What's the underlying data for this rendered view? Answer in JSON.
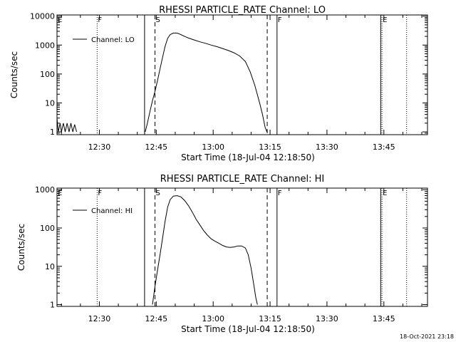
{
  "page": {
    "background": "#ffffff",
    "foreground": "#000000",
    "footer": "18-Oct-2021 23:18"
  },
  "chart_data": [
    {
      "type": "line",
      "title": "RHESSI PARTICLE_RATE Channel: LO",
      "xlabel": "Start Time (18-Jul-04 12:18:50)",
      "ylabel": "Counts/sec",
      "xscale": "time-minutes",
      "xlim": [
        "12:18:50",
        "13:56:30"
      ],
      "xticks": [
        "12:30",
        "12:45",
        "13:00",
        "13:15",
        "13:30",
        "13:45"
      ],
      "yscale": "log",
      "ylim": [
        0.8,
        11000
      ],
      "yticks": [
        "1",
        "10",
        "100",
        "1000",
        "10000"
      ],
      "grid": false,
      "legend": {
        "position": "top-left",
        "entries": [
          "Channel: LO"
        ]
      },
      "markers": [
        {
          "label": "E",
          "time": "12:18:50",
          "style": "dotted"
        },
        {
          "label": "F",
          "time": "12:29:25",
          "style": "dotted"
        },
        {
          "label": "",
          "time": "12:41:55",
          "style": "solid"
        },
        {
          "label": "S",
          "time": "12:44:40",
          "style": "dashed"
        },
        {
          "label": "",
          "time": "13:14:15",
          "style": "dashed"
        },
        {
          "label": "F",
          "time": "13:16:50",
          "style": "solid"
        },
        {
          "label": "E",
          "time": "13:44:30",
          "style": "dotted"
        },
        {
          "label": "",
          "time": "13:44:10",
          "style": "solid"
        },
        {
          "label": "",
          "time": "13:51:00",
          "style": "dotted"
        }
      ],
      "series": [
        {
          "name": "Channel: LO",
          "segments": [
            [
              [
                "12:18:50",
                3
              ],
              [
                "12:19:10",
                1
              ],
              [
                "12:19:40",
                2
              ],
              [
                "12:20:00",
                1
              ],
              [
                "12:20:30",
                2
              ],
              [
                "12:21:00",
                1
              ],
              [
                "12:21:30",
                2
              ],
              [
                "12:22:00",
                1
              ],
              [
                "12:22:30",
                2
              ],
              [
                "12:23:00",
                1
              ],
              [
                "12:23:30",
                1.8
              ],
              [
                "12:24:00",
                1
              ]
            ],
            [
              [
                "12:42:05",
                1
              ],
              [
                "12:42:40",
                2
              ],
              [
                "12:43:20",
                5
              ],
              [
                "12:44:00",
                12
              ],
              [
                "12:44:40",
                25
              ],
              [
                "12:45:20",
                60
              ],
              [
                "12:46:00",
                150
              ],
              [
                "12:46:40",
                380
              ],
              [
                "12:47:20",
                900
              ],
              [
                "12:48:00",
                1700
              ],
              [
                "12:48:40",
                2300
              ],
              [
                "12:49:30",
                2600
              ],
              [
                "12:50:30",
                2600
              ],
              [
                "12:51:30",
                2300
              ],
              [
                "12:52:30",
                2000
              ],
              [
                "12:53:30",
                1750
              ],
              [
                "12:55:00",
                1500
              ],
              [
                "12:56:30",
                1300
              ],
              [
                "12:58:00",
                1150
              ],
              [
                "12:59:30",
                1000
              ],
              [
                "13:01:00",
                880
              ],
              [
                "13:02:30",
                760
              ],
              [
                "13:04:00",
                650
              ],
              [
                "13:05:30",
                540
              ],
              [
                "13:07:00",
                420
              ],
              [
                "13:08:30",
                270
              ],
              [
                "13:09:45",
                120
              ],
              [
                "13:11:00",
                40
              ],
              [
                "13:12:15",
                10
              ],
              [
                "13:13:00",
                4
              ],
              [
                "13:13:40",
                1.5
              ],
              [
                "13:14:10",
                1
              ]
            ]
          ]
        }
      ]
    },
    {
      "type": "line",
      "title": "RHESSI PARTICLE_RATE Channel: HI",
      "xlabel": "Start Time (18-Jul-04 12:18:50)",
      "ylabel": "Counts/sec",
      "xscale": "time-minutes",
      "xlim": [
        "12:18:50",
        "13:56:30"
      ],
      "xticks": [
        "12:30",
        "12:45",
        "13:00",
        "13:15",
        "13:30",
        "13:45"
      ],
      "yscale": "log",
      "ylim": [
        0.9,
        1100
      ],
      "yticks": [
        "1",
        "10",
        "100",
        "1000"
      ],
      "grid": false,
      "legend": {
        "position": "top-left",
        "entries": [
          "Channel: HI"
        ]
      },
      "markers": [
        {
          "label": "E",
          "time": "12:18:50",
          "style": "dotted"
        },
        {
          "label": "F",
          "time": "12:29:25",
          "style": "dotted"
        },
        {
          "label": "",
          "time": "12:41:55",
          "style": "solid"
        },
        {
          "label": "S",
          "time": "12:44:40",
          "style": "dashed"
        },
        {
          "label": "",
          "time": "13:14:15",
          "style": "dashed"
        },
        {
          "label": "F",
          "time": "13:16:50",
          "style": "solid"
        },
        {
          "label": "E",
          "time": "13:44:30",
          "style": "dotted"
        },
        {
          "label": "",
          "time": "13:44:10",
          "style": "solid"
        },
        {
          "label": "",
          "time": "13:51:00",
          "style": "dotted"
        }
      ],
      "series": [
        {
          "name": "Channel: HI",
          "segments": [
            [
              [
                "12:44:00",
                1
              ],
              [
                "12:44:40",
                3
              ],
              [
                "12:45:20",
                8
              ],
              [
                "12:46:00",
                20
              ],
              [
                "12:46:40",
                55
              ],
              [
                "12:47:20",
                150
              ],
              [
                "12:48:00",
                350
              ],
              [
                "12:48:40",
                550
              ],
              [
                "12:49:30",
                680
              ],
              [
                "12:50:30",
                700
              ],
              [
                "12:51:30",
                650
              ],
              [
                "12:52:30",
                520
              ],
              [
                "12:53:30",
                380
              ],
              [
                "12:54:30",
                260
              ],
              [
                "12:55:30",
                170
              ],
              [
                "12:56:30",
                120
              ],
              [
                "12:57:30",
                85
              ],
              [
                "12:58:30",
                65
              ],
              [
                "12:59:30",
                52
              ],
              [
                "13:00:30",
                45
              ],
              [
                "13:01:30",
                40
              ],
              [
                "13:02:30",
                35
              ],
              [
                "13:03:30",
                32
              ],
              [
                "13:04:30",
                31
              ],
              [
                "13:05:30",
                32
              ],
              [
                "13:06:30",
                34
              ],
              [
                "13:07:30",
                34
              ],
              [
                "13:08:30",
                30
              ],
              [
                "13:09:15",
                20
              ],
              [
                "13:10:00",
                9
              ],
              [
                "13:10:40",
                3.5
              ],
              [
                "13:11:15",
                1.5
              ],
              [
                "13:11:40",
                1
              ]
            ]
          ]
        }
      ]
    }
  ]
}
